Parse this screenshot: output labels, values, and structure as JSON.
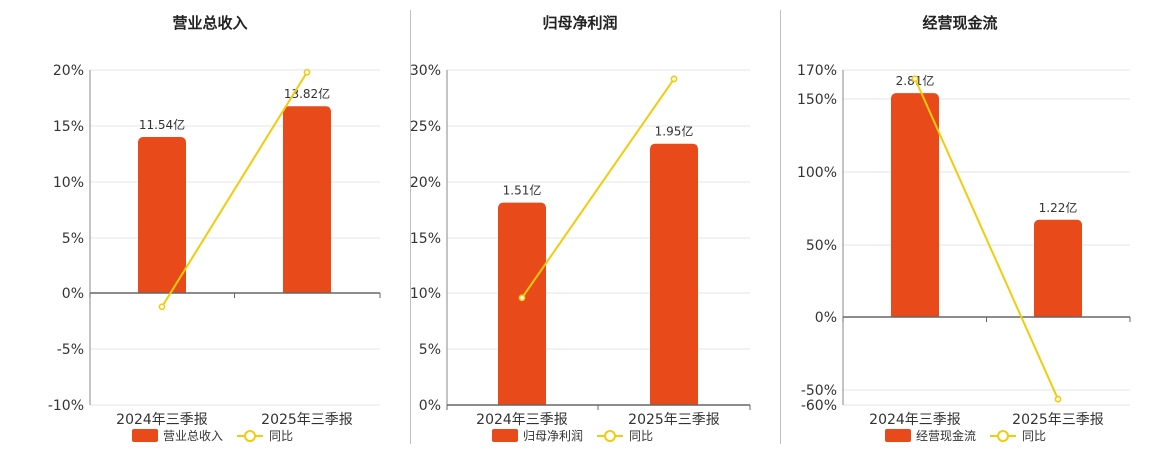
{
  "chart_data": [
    {
      "type": "bar",
      "title": "营业总收入",
      "categories": [
        "2024年三季报",
        "2025年三季报"
      ],
      "series": [
        {
          "name": "营业总收入",
          "type": "bar",
          "values": [
            11.54,
            13.82
          ],
          "labels": [
            "11.54亿",
            "13.82亿"
          ]
        },
        {
          "name": "同比",
          "type": "line",
          "values": [
            -1.2,
            19.8
          ]
        }
      ],
      "y_ticks": [
        "20%",
        "15%",
        "10%",
        "5%",
        "0%",
        "-5%",
        "-10%"
      ],
      "ylim": [
        -10,
        20
      ],
      "grid": true,
      "legend": "bottom",
      "colors": {
        "bar": "#e84a1a",
        "line": "#f2cc0c"
      }
    },
    {
      "type": "bar",
      "title": "归母净利润",
      "categories": [
        "2024年三季报",
        "2025年三季报"
      ],
      "series": [
        {
          "name": "归母净利润",
          "type": "bar",
          "values": [
            1.51,
            1.95
          ],
          "labels": [
            "1.51亿",
            "1.95亿"
          ]
        },
        {
          "name": "同比",
          "type": "line",
          "values": [
            9.6,
            29.2
          ]
        }
      ],
      "y_ticks": [
        "30%",
        "25%",
        "20%",
        "15%",
        "10%",
        "5%",
        "0%"
      ],
      "ylim": [
        0,
        30
      ],
      "grid": true,
      "legend": "bottom",
      "colors": {
        "bar": "#e84a1a",
        "line": "#f2cc0c"
      }
    },
    {
      "type": "bar",
      "title": "经营现金流",
      "categories": [
        "2024年三季报",
        "2025年三季报"
      ],
      "series": [
        {
          "name": "经营现金流",
          "type": "bar",
          "values": [
            2.81,
            1.22
          ],
          "labels": [
            "2.81亿",
            "1.22亿"
          ]
        },
        {
          "name": "同比",
          "type": "line",
          "values": [
            164,
            -56
          ]
        }
      ],
      "y_ticks": [
        "170%",
        "150%",
        "100%",
        "50%",
        "0%",
        "-50%",
        "-60%"
      ],
      "ylim": [
        -60,
        170
      ],
      "grid": true,
      "legend": "bottom",
      "colors": {
        "bar": "#e84a1a",
        "line": "#f2cc0c"
      }
    }
  ]
}
